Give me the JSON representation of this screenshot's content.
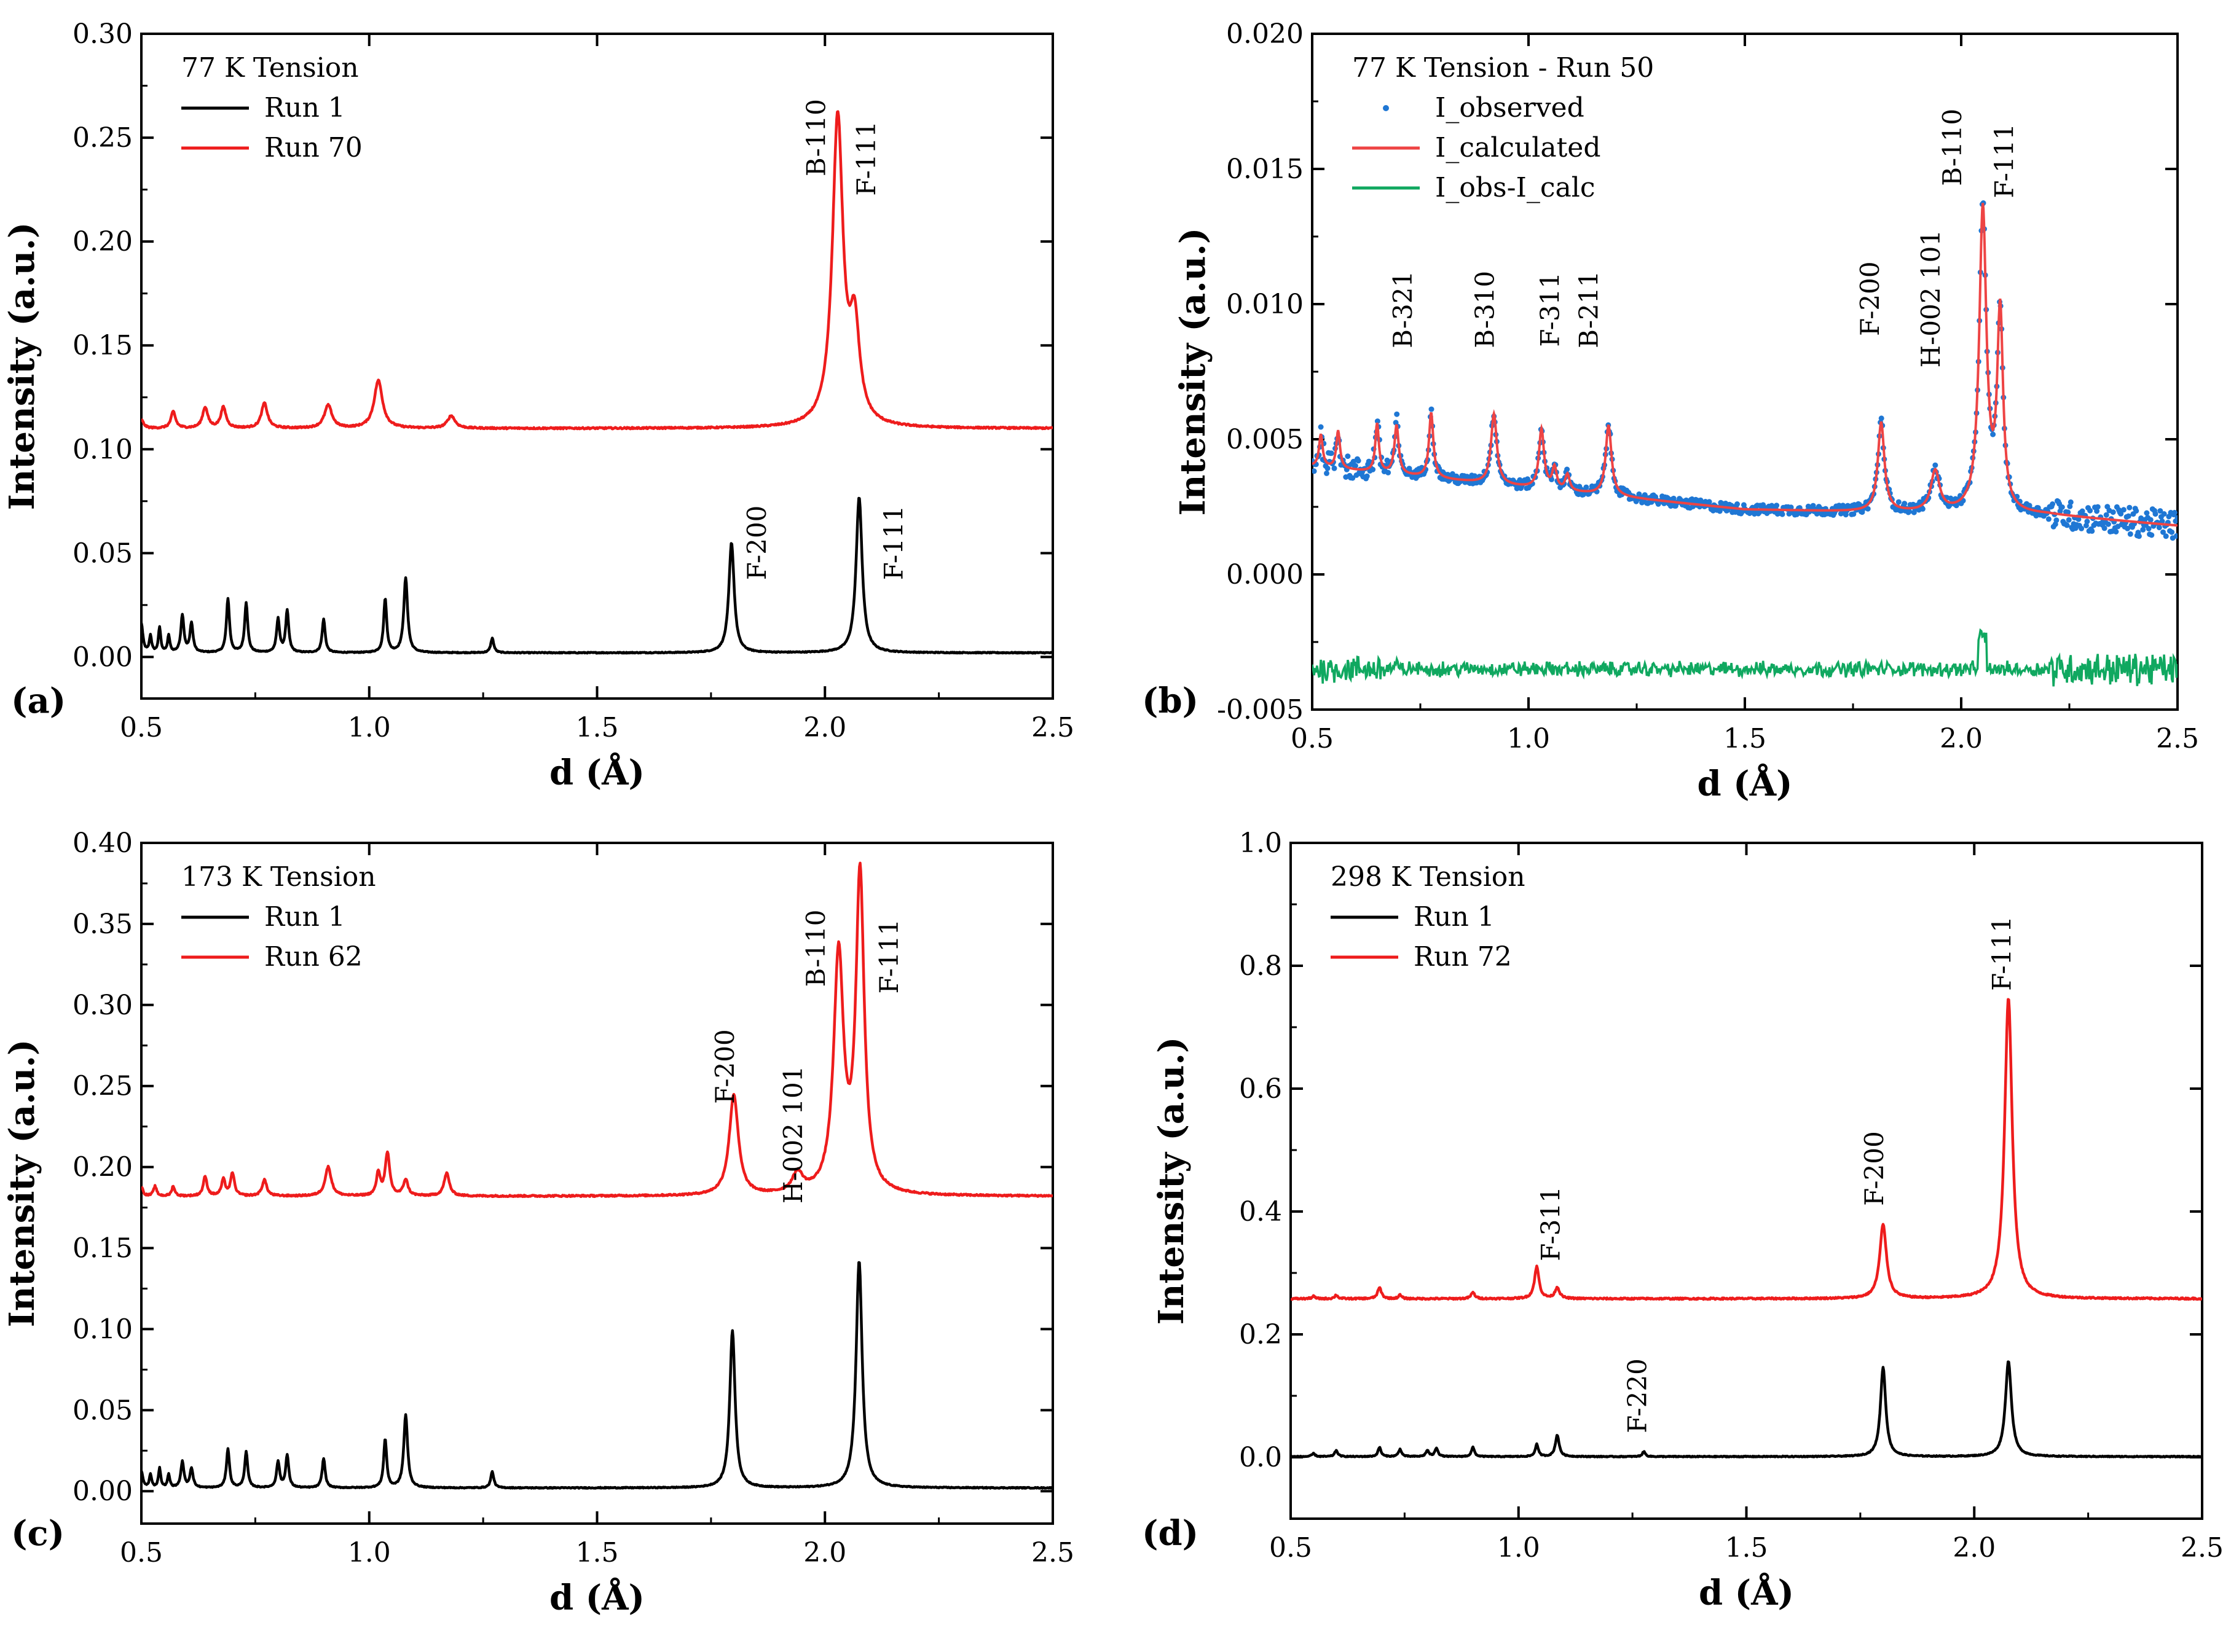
{
  "colors": {
    "run_first": "#000000",
    "run_second": "#ee1c1c",
    "observed": "#1f77d4",
    "calculated": "#ee4444",
    "difference": "#10a860"
  },
  "chart_data": [
    {
      "id": "a",
      "type": "line",
      "panel_label": "(a)",
      "title": "77 K Tension",
      "xlabel": "d (Å)",
      "ylabel": "Intensity (a.u.)",
      "xlim": [
        0.5,
        2.5
      ],
      "ylim": [
        -0.02,
        0.3
      ],
      "xticks": [
        0.5,
        1.0,
        1.5,
        2.0,
        2.5
      ],
      "xtick_labels": [
        "0.5",
        "1.0",
        "1.5",
        "2.0",
        "2.5"
      ],
      "yticks": [
        0.0,
        0.05,
        0.1,
        0.15,
        0.2,
        0.25,
        0.3
      ],
      "ytick_labels": [
        "0.00",
        "0.05",
        "0.10",
        "0.15",
        "0.20",
        "0.25",
        "0.30"
      ],
      "legend_position": "top-left",
      "series": [
        {
          "name": "Run 1",
          "color": "#000000",
          "baseline": 0.002,
          "peaks": [
            [
              0.5,
              0.014,
              0.004
            ],
            [
              0.52,
              0.008,
              0.003
            ],
            [
              0.54,
              0.012,
              0.003
            ],
            [
              0.56,
              0.008,
              0.003
            ],
            [
              0.59,
              0.018,
              0.004
            ],
            [
              0.61,
              0.014,
              0.004
            ],
            [
              0.69,
              0.026,
              0.004
            ],
            [
              0.73,
              0.024,
              0.004
            ],
            [
              0.8,
              0.016,
              0.004
            ],
            [
              0.82,
              0.02,
              0.004
            ],
            [
              0.9,
              0.016,
              0.004
            ],
            [
              1.035,
              0.026,
              0.004
            ],
            [
              1.08,
              0.036,
              0.005
            ],
            [
              1.27,
              0.007,
              0.004
            ],
            [
              1.795,
              0.053,
              0.007
            ],
            [
              2.075,
              0.075,
              0.008
            ]
          ]
        },
        {
          "name": "Run 70",
          "color": "#ee1c1c",
          "baseline": 0.11,
          "peaks": [
            [
              0.5,
              0.004,
              0.006
            ],
            [
              0.57,
              0.008,
              0.006
            ],
            [
              0.64,
              0.01,
              0.007
            ],
            [
              0.68,
              0.01,
              0.007
            ],
            [
              0.77,
              0.012,
              0.008
            ],
            [
              0.91,
              0.011,
              0.01
            ],
            [
              1.02,
              0.023,
              0.011
            ],
            [
              1.18,
              0.006,
              0.01
            ],
            [
              2.028,
              0.148,
              0.014
            ],
            [
              2.065,
              0.045,
              0.013
            ]
          ]
        }
      ],
      "annotations": [
        {
          "text": "B-110",
          "x": 2.0,
          "y": 0.25
        },
        {
          "text": "F-111",
          "x": 2.11,
          "y": 0.24
        },
        {
          "text": "F-200",
          "x": 1.87,
          "y": 0.055
        },
        {
          "text": "F-111",
          "x": 2.17,
          "y": 0.055
        }
      ]
    },
    {
      "id": "b",
      "type": "scatter",
      "panel_label": "(b)",
      "title": "77 K Tension - Run 50",
      "xlabel": "d (Å)",
      "ylabel": "Intensity (a.u.)",
      "xlim": [
        0.5,
        2.5
      ],
      "ylim": [
        -0.005,
        0.02
      ],
      "xticks": [
        0.5,
        1.0,
        1.5,
        2.0,
        2.5
      ],
      "xtick_labels": [
        "0.5",
        "1.0",
        "1.5",
        "2.0",
        "2.5"
      ],
      "yticks": [
        -0.005,
        0.0,
        0.005,
        0.01,
        0.015,
        0.02
      ],
      "ytick_labels": [
        "-0.005",
        "0.000",
        "0.005",
        "0.010",
        "0.015",
        "0.020"
      ],
      "legend_position": "top-left",
      "series": [
        {
          "name": "I_observed",
          "color": "#1f77d4",
          "style": "dots"
        },
        {
          "name": "I_calculated",
          "color": "#ee4444",
          "style": "line"
        },
        {
          "name": "I_obs-I_calc",
          "color": "#10a860",
          "style": "line",
          "baseline": -0.0035
        }
      ],
      "calc_background": [
        [
          0.5,
          0.004
        ],
        [
          1.0,
          0.0032
        ],
        [
          1.5,
          0.0024
        ],
        [
          1.8,
          0.0023
        ],
        [
          2.2,
          0.0022
        ],
        [
          2.5,
          0.0018
        ]
      ],
      "calc_peaks": [
        [
          0.52,
          0.0012,
          0.005
        ],
        [
          0.56,
          0.0014,
          0.005
        ],
        [
          0.65,
          0.0018,
          0.005
        ],
        [
          0.695,
          0.0018,
          0.006
        ],
        [
          0.775,
          0.0024,
          0.006
        ],
        [
          0.92,
          0.0026,
          0.008
        ],
        [
          1.03,
          0.0022,
          0.007
        ],
        [
          1.06,
          0.0008,
          0.006
        ],
        [
          1.09,
          0.0006,
          0.006
        ],
        [
          1.185,
          0.0026,
          0.008
        ],
        [
          1.815,
          0.0033,
          0.009
        ],
        [
          1.94,
          0.0015,
          0.012
        ],
        [
          2.05,
          0.0112,
          0.01
        ],
        [
          2.09,
          0.0073,
          0.008
        ]
      ],
      "annotations": [
        {
          "text": "B-321",
          "x": 0.73,
          "y": 0.0098
        },
        {
          "text": "B-310",
          "x": 0.92,
          "y": 0.0098
        },
        {
          "text": "F-311",
          "x": 1.07,
          "y": 0.0098
        },
        {
          "text": "B-211",
          "x": 1.16,
          "y": 0.0098
        },
        {
          "text": "F-200",
          "x": 1.81,
          "y": 0.0102
        },
        {
          "text": "H-002 101",
          "x": 1.95,
          "y": 0.0102
        },
        {
          "text": "B-110",
          "x": 2.0,
          "y": 0.0158
        },
        {
          "text": "F-111",
          "x": 2.12,
          "y": 0.0153
        }
      ]
    },
    {
      "id": "c",
      "type": "line",
      "panel_label": "(c)",
      "title": "173 K Tension",
      "xlabel": "d (Å)",
      "ylabel": "Intensity (a.u.)",
      "xlim": [
        0.5,
        2.5
      ],
      "ylim": [
        -0.02,
        0.4
      ],
      "xticks": [
        0.5,
        1.0,
        1.5,
        2.0,
        2.5
      ],
      "xtick_labels": [
        "0.5",
        "1.0",
        "1.5",
        "2.0",
        "2.5"
      ],
      "yticks": [
        0.0,
        0.05,
        0.1,
        0.15,
        0.2,
        0.25,
        0.3,
        0.35,
        0.4
      ],
      "ytick_labels": [
        "0.00",
        "0.05",
        "0.10",
        "0.15",
        "0.20",
        "0.25",
        "0.30",
        "0.35",
        "0.40"
      ],
      "legend_position": "top-left",
      "series": [
        {
          "name": "Run 1",
          "color": "#000000",
          "baseline": 0.002,
          "peaks": [
            [
              0.5,
              0.01,
              0.004
            ],
            [
              0.52,
              0.008,
              0.003
            ],
            [
              0.54,
              0.012,
              0.003
            ],
            [
              0.56,
              0.008,
              0.003
            ],
            [
              0.59,
              0.016,
              0.004
            ],
            [
              0.61,
              0.012,
              0.004
            ],
            [
              0.69,
              0.024,
              0.004
            ],
            [
              0.73,
              0.022,
              0.004
            ],
            [
              0.8,
              0.016,
              0.004
            ],
            [
              0.82,
              0.02,
              0.004
            ],
            [
              0.9,
              0.018,
              0.004
            ],
            [
              1.035,
              0.03,
              0.004
            ],
            [
              1.08,
              0.045,
              0.005
            ],
            [
              1.27,
              0.01,
              0.004
            ],
            [
              1.797,
              0.097,
              0.007
            ],
            [
              2.075,
              0.14,
              0.008
            ]
          ]
        },
        {
          "name": "Run 62",
          "color": "#ee1c1c",
          "baseline": 0.182,
          "peaks": [
            [
              0.5,
              0.006,
              0.004
            ],
            [
              0.53,
              0.006,
              0.004
            ],
            [
              0.57,
              0.006,
              0.004
            ],
            [
              0.64,
              0.012,
              0.005
            ],
            [
              0.68,
              0.01,
              0.005
            ],
            [
              0.7,
              0.014,
              0.005
            ],
            [
              0.77,
              0.01,
              0.006
            ],
            [
              0.91,
              0.018,
              0.008
            ],
            [
              1.02,
              0.014,
              0.005
            ],
            [
              1.04,
              0.026,
              0.006
            ],
            [
              1.08,
              0.01,
              0.006
            ],
            [
              1.17,
              0.014,
              0.007
            ],
            [
              1.8,
              0.062,
              0.012
            ],
            [
              1.94,
              0.012,
              0.014
            ],
            [
              2.03,
              0.146,
              0.013
            ],
            [
              2.077,
              0.195,
              0.011
            ]
          ]
        }
      ],
      "annotations": [
        {
          "text": "F-200",
          "x": 1.8,
          "y": 0.262
        },
        {
          "text": "H-002 101",
          "x": 1.95,
          "y": 0.22
        },
        {
          "text": "B-110",
          "x": 2.0,
          "y": 0.335
        },
        {
          "text": "F-111",
          "x": 2.16,
          "y": 0.33
        }
      ]
    },
    {
      "id": "d",
      "type": "line",
      "panel_label": "(d)",
      "title": "298 K Tension",
      "xlabel": "d (Å)",
      "ylabel": "Intensity (a.u.)",
      "xlim": [
        0.5,
        2.5
      ],
      "ylim": [
        -0.1,
        1.0
      ],
      "xticks": [
        0.5,
        1.0,
        1.5,
        2.0,
        2.5
      ],
      "xtick_labels": [
        "0.5",
        "1.0",
        "1.5",
        "2.0",
        "2.5"
      ],
      "yticks": [
        0.0,
        0.2,
        0.4,
        0.6,
        0.8,
        1.0
      ],
      "ytick_labels": [
        "0.0",
        "0.2",
        "0.4",
        "0.6",
        "0.8",
        "1.0"
      ],
      "legend_position": "top-left",
      "series": [
        {
          "name": "Run 1",
          "color": "#000000",
          "baseline": 0.001,
          "peaks": [
            [
              0.55,
              0.005,
              0.004
            ],
            [
              0.6,
              0.01,
              0.004
            ],
            [
              0.695,
              0.015,
              0.004
            ],
            [
              0.74,
              0.012,
              0.004
            ],
            [
              0.8,
              0.01,
              0.004
            ],
            [
              0.82,
              0.014,
              0.004
            ],
            [
              0.9,
              0.015,
              0.004
            ],
            [
              1.04,
              0.02,
              0.004
            ],
            [
              1.085,
              0.035,
              0.005
            ],
            [
              1.275,
              0.008,
              0.004
            ],
            [
              1.8,
              0.145,
              0.007
            ],
            [
              2.075,
              0.155,
              0.008
            ]
          ]
        },
        {
          "name": "Run 72",
          "color": "#ee1c1c",
          "baseline": 0.258,
          "peaks": [
            [
              0.55,
              0.004,
              0.004
            ],
            [
              0.6,
              0.006,
              0.004
            ],
            [
              0.695,
              0.018,
              0.005
            ],
            [
              0.74,
              0.006,
              0.004
            ],
            [
              0.9,
              0.01,
              0.005
            ],
            [
              1.04,
              0.052,
              0.006
            ],
            [
              1.085,
              0.018,
              0.006
            ],
            [
              1.8,
              0.12,
              0.009
            ],
            [
              2.075,
              0.49,
              0.01
            ]
          ]
        }
      ],
      "annotations": [
        {
          "text": "F-311",
          "x": 1.09,
          "y": 0.38
        },
        {
          "text": "F-220",
          "x": 1.28,
          "y": 0.1
        },
        {
          "text": "F-200",
          "x": 1.8,
          "y": 0.47
        },
        {
          "text": "F-111",
          "x": 2.08,
          "y": 0.82
        }
      ]
    }
  ]
}
